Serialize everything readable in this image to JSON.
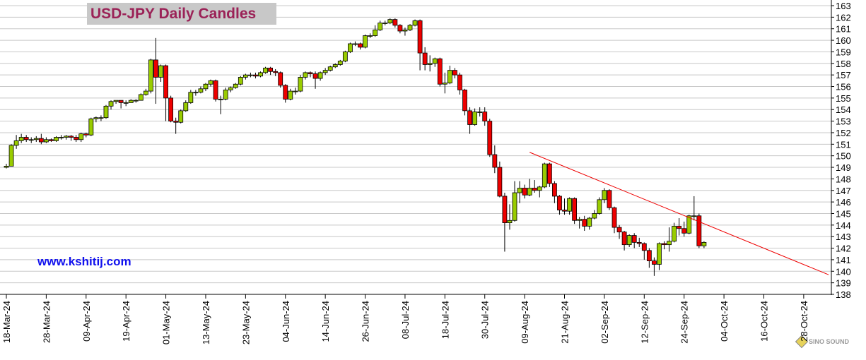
{
  "chart_data": {
    "type": "candlestick",
    "title": "USD-JPY Daily Candles",
    "annotation": "www.kshitij.com",
    "logo": "SINO SOUND",
    "up_color": "#99cc00",
    "down_color": "#ee0000",
    "trendline_color": "#ee0000",
    "grid": true,
    "ylim": [
      138,
      163
    ],
    "yticks": [
      138,
      139,
      140,
      141,
      142,
      143,
      144,
      145,
      146,
      147,
      148,
      149,
      150,
      151,
      152,
      153,
      154,
      155,
      156,
      157,
      158,
      159,
      160,
      161,
      162,
      163
    ],
    "categories": [
      "18-Mar-24",
      null,
      null,
      null,
      null,
      null,
      null,
      null,
      "28-Mar-24",
      null,
      null,
      null,
      null,
      null,
      null,
      null,
      "09-Apr-24",
      null,
      null,
      null,
      null,
      null,
      null,
      null,
      "19-Apr-24",
      null,
      null,
      null,
      null,
      null,
      null,
      null,
      "01-May-24",
      null,
      null,
      null,
      null,
      null,
      null,
      null,
      "13-May-24",
      null,
      null,
      null,
      null,
      null,
      null,
      null,
      "23-May-24",
      null,
      null,
      null,
      null,
      null,
      null,
      null,
      "04-Jun-24",
      null,
      null,
      null,
      null,
      null,
      null,
      null,
      "14-Jun-24",
      null,
      null,
      null,
      null,
      null,
      null,
      null,
      "26-Jun-24",
      null,
      null,
      null,
      null,
      null,
      null,
      null,
      "08-Jul-24",
      null,
      null,
      null,
      null,
      null,
      null,
      null,
      "18-Jul-24",
      null,
      null,
      null,
      null,
      null,
      null,
      null,
      "30-Jul-24",
      null,
      null,
      null,
      null,
      null,
      null,
      null,
      "09-Aug-24",
      null,
      null,
      null,
      null,
      null,
      null,
      null,
      "21-Aug-24",
      null,
      null,
      null,
      null,
      null,
      null,
      null,
      "02-Sep-24",
      null,
      null,
      null,
      null,
      null,
      null,
      null,
      "12-Sep-24",
      null,
      null,
      null,
      null,
      null,
      null,
      null,
      "24-Sep-24",
      null,
      null,
      null,
      null,
      null,
      null,
      null,
      "04-Oct-24",
      null,
      null,
      null,
      null,
      null,
      null,
      null,
      "16-Oct-24",
      null,
      null,
      null,
      null,
      null,
      null,
      null,
      "28-Oct-24",
      null,
      null,
      null,
      null,
      null
    ],
    "open": [
      149.0,
      149.1,
      150.9,
      151.3,
      151.6,
      151.4,
      151.4,
      151.5,
      151.2,
      151.4,
      151.3,
      151.6,
      151.6,
      151.7,
      151.6,
      151.4,
      151.9,
      151.8,
      153.2,
      153.3,
      153.3,
      154.3,
      154.7,
      154.8,
      154.6,
      154.6,
      154.8,
      154.8,
      155.3,
      155.6,
      158.3,
      156.8,
      157.8,
      155.0,
      153.0,
      152.9,
      153.9,
      154.6,
      155.5,
      155.5,
      155.8,
      156.2,
      156.5,
      154.9,
      154.9,
      155.7,
      155.9,
      156.2,
      156.8,
      157.0,
      157.0,
      156.9,
      157.2,
      157.6,
      157.3,
      157.2,
      156.1,
      154.9,
      155.6,
      155.6,
      156.8,
      157.2,
      157.1,
      156.7,
      157.2,
      157.4,
      157.7,
      157.9,
      158.2,
      159.0,
      159.7,
      159.7,
      159.4,
      160.4,
      160.4,
      160.9,
      161.5,
      161.5,
      161.8,
      161.3,
      160.8,
      160.9,
      161.3,
      161.7,
      158.9,
      157.9,
      158.0,
      158.4,
      156.2,
      156.3,
      157.4,
      157.0,
      155.7,
      153.9,
      152.7,
      153.8,
      153.8,
      153.0,
      150.1,
      149.0,
      146.5,
      144.2,
      144.4,
      146.8,
      147.2,
      146.6,
      147.2,
      147.0,
      147.3,
      149.3,
      147.6,
      146.5,
      145.3,
      145.2,
      146.3,
      144.4,
      144.5,
      143.9,
      144.6,
      145.0,
      146.2,
      147.0,
      145.5,
      143.8,
      143.4,
      142.3,
      143.1,
      142.5,
      142.4,
      141.8,
      140.9,
      140.6,
      142.4,
      142.3,
      142.6,
      143.9,
      143.7,
      143.3,
      144.8,
      144.8,
      142.2,
      null,
      null,
      null,
      null,
      null,
      null,
      null,
      null,
      null,
      null,
      null,
      null,
      null,
      null,
      null,
      null,
      null,
      null,
      null,
      null,
      null,
      null,
      null,
      null,
      null
    ],
    "high": [
      149.3,
      151.0,
      151.8,
      151.9,
      151.8,
      151.6,
      151.7,
      151.9,
      151.6,
      151.5,
      151.7,
      151.8,
      151.8,
      151.8,
      151.8,
      152.0,
      152.0,
      153.3,
      153.4,
      153.5,
      154.4,
      154.8,
      154.8,
      154.8,
      154.8,
      154.9,
      154.9,
      155.4,
      155.8,
      158.4,
      160.2,
      157.9,
      157.9,
      155.2,
      153.3,
      154.0,
      154.8,
      155.7,
      155.7,
      156.0,
      156.3,
      156.6,
      156.6,
      155.2,
      155.9,
      156.0,
      156.3,
      156.9,
      157.1,
      157.2,
      157.2,
      157.3,
      157.7,
      157.7,
      157.5,
      157.3,
      156.2,
      155.8,
      155.9,
      157.0,
      157.3,
      157.3,
      157.3,
      157.3,
      157.6,
      157.8,
      158.0,
      158.3,
      159.1,
      159.8,
      159.9,
      159.8,
      160.5,
      160.6,
      161.3,
      161.7,
      161.7,
      161.9,
      161.9,
      161.4,
      161.1,
      161.4,
      161.8,
      161.8,
      159.4,
      158.7,
      158.5,
      158.5,
      157.2,
      157.8,
      157.6,
      157.2,
      155.8,
      154.2,
      154.1,
      154.2,
      154.2,
      153.2,
      150.9,
      149.5,
      146.8,
      145.8,
      147.8,
      147.8,
      147.5,
      148.0,
      147.9,
      147.4,
      149.4,
      149.4,
      147.8,
      146.6,
      146.3,
      146.4,
      146.4,
      144.7,
      144.8,
      144.7,
      145.3,
      146.4,
      147.2,
      147.1,
      145.6,
      144.0,
      143.5,
      143.2,
      143.3,
      142.9,
      142.5,
      142.0,
      141.2,
      142.5,
      142.6,
      143.8,
      144.2,
      144.6,
      144.3,
      144.9,
      146.5,
      145.0,
      142.6,
      null,
      null,
      null,
      null,
      null,
      null,
      null,
      null,
      null,
      null,
      null,
      null,
      null,
      null,
      null,
      null,
      null,
      null,
      null,
      null,
      null,
      null,
      null,
      null,
      null
    ],
    "low": [
      148.9,
      149.1,
      150.6,
      151.1,
      151.2,
      151.1,
      151.2,
      151.0,
      151.1,
      151.2,
      151.2,
      151.4,
      151.4,
      151.3,
      151.2,
      151.2,
      151.6,
      151.7,
      152.9,
      153.0,
      153.2,
      154.0,
      154.5,
      154.1,
      154.3,
      154.6,
      154.6,
      154.8,
      155.2,
      155.4,
      154.5,
      156.4,
      153.0,
      152.9,
      151.9,
      152.8,
      153.8,
      154.5,
      155.2,
      155.4,
      155.6,
      156.0,
      154.7,
      153.6,
      154.8,
      155.5,
      155.8,
      156.1,
      156.6,
      156.8,
      156.7,
      156.8,
      157.1,
      157.0,
      156.9,
      155.9,
      154.6,
      154.8,
      155.3,
      155.5,
      156.6,
      156.8,
      155.8,
      156.5,
      157.0,
      157.3,
      157.6,
      157.8,
      158.1,
      158.9,
      159.5,
      159.2,
      159.3,
      160.2,
      160.3,
      160.8,
      161.3,
      161.4,
      161.1,
      160.6,
      160.4,
      160.8,
      161.2,
      157.4,
      157.4,
      157.3,
      157.7,
      156.0,
      155.4,
      156.2,
      156.7,
      155.3,
      153.5,
      151.9,
      152.6,
      153.4,
      152.6,
      149.9,
      148.5,
      146.4,
      141.7,
      143.6,
      144.3,
      145.9,
      146.3,
      146.5,
      146.8,
      146.4,
      147.2,
      147.3,
      145.9,
      144.9,
      144.9,
      144.9,
      144.1,
      143.7,
      143.5,
      143.6,
      144.5,
      144.9,
      145.9,
      145.3,
      143.3,
      142.8,
      141.8,
      142.1,
      142.0,
      142.1,
      141.0,
      140.3,
      139.6,
      140.1,
      141.9,
      141.7,
      142.5,
      143.1,
      143.0,
      143.2,
      144.4,
      142.0,
      142.0,
      null,
      null,
      null,
      null,
      null,
      null,
      null,
      null,
      null,
      null,
      null,
      null,
      null,
      null,
      null,
      null,
      null,
      null,
      null,
      null,
      null,
      null,
      null,
      null,
      null
    ],
    "close": [
      149.1,
      150.9,
      151.3,
      151.6,
      151.4,
      151.4,
      151.5,
      151.2,
      151.4,
      151.3,
      151.6,
      151.6,
      151.7,
      151.6,
      151.4,
      151.9,
      151.8,
      153.2,
      153.3,
      153.3,
      154.3,
      154.7,
      154.8,
      154.6,
      154.6,
      154.8,
      154.8,
      155.3,
      155.6,
      158.3,
      156.8,
      157.8,
      155.0,
      153.0,
      152.9,
      153.9,
      154.6,
      155.5,
      155.5,
      155.8,
      156.2,
      156.5,
      154.9,
      154.9,
      155.7,
      155.9,
      156.2,
      156.8,
      157.0,
      157.0,
      156.9,
      157.2,
      157.6,
      157.3,
      157.2,
      156.1,
      154.9,
      155.6,
      155.6,
      156.8,
      157.2,
      157.1,
      156.7,
      157.2,
      157.4,
      157.7,
      157.9,
      158.2,
      159.0,
      159.7,
      159.7,
      159.4,
      160.4,
      160.4,
      160.9,
      161.5,
      161.5,
      161.8,
      161.3,
      160.8,
      160.9,
      161.3,
      161.7,
      158.9,
      157.9,
      158.0,
      158.4,
      156.2,
      156.3,
      157.4,
      157.0,
      155.7,
      153.9,
      152.7,
      153.8,
      153.8,
      153.0,
      150.1,
      149.0,
      146.5,
      144.2,
      144.4,
      146.8,
      147.2,
      146.6,
      147.2,
      147.0,
      147.3,
      149.3,
      147.6,
      146.5,
      145.3,
      145.2,
      146.3,
      144.4,
      144.5,
      143.9,
      144.6,
      145.0,
      146.2,
      147.0,
      145.5,
      143.8,
      143.4,
      142.3,
      143.1,
      142.5,
      142.4,
      141.8,
      140.9,
      140.6,
      142.4,
      142.3,
      142.6,
      143.9,
      143.7,
      143.3,
      144.8,
      144.8,
      142.2,
      142.5,
      null,
      null,
      null,
      null,
      null,
      null,
      null,
      null,
      null,
      null,
      null,
      null,
      null,
      null,
      null,
      null,
      null,
      null,
      null,
      null,
      null,
      null,
      null,
      null,
      null
    ],
    "trendline": {
      "x": [
        105,
        165
      ],
      "y": [
        150.3,
        139.7
      ]
    }
  }
}
